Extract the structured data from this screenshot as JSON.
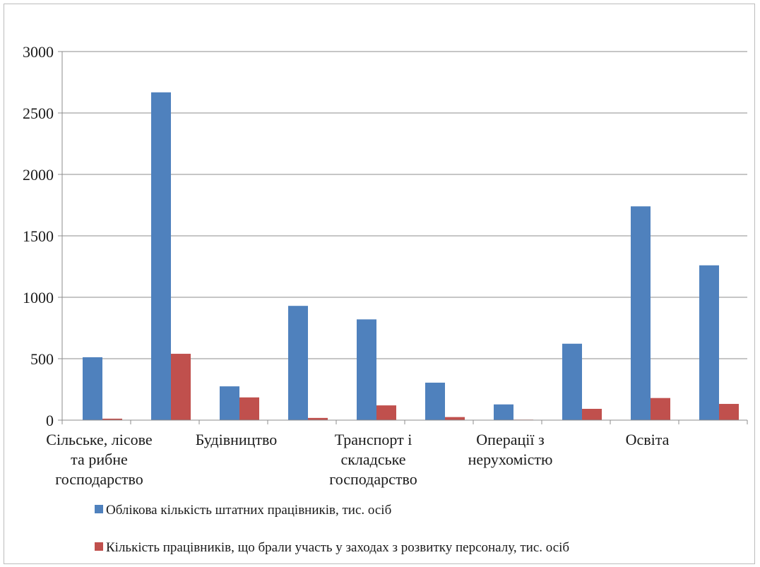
{
  "chart_data": {
    "type": "bar",
    "title": "",
    "xlabel": "",
    "ylabel": "",
    "ylim": [
      0,
      3000
    ],
    "yticks": [
      0,
      500,
      1000,
      1500,
      2000,
      2500,
      3000
    ],
    "grid": true,
    "legend_position": "bottom",
    "categories": [
      "Сільське, лісове та рибне господарство",
      "",
      "Будівництво",
      "",
      "Транспорт і складське господарство",
      "",
      "Операції з нерухомістю",
      "",
      "Освіта",
      ""
    ],
    "category_label_lines": [
      [
        "Сільське, лісове",
        "та рибне",
        "господарство"
      ],
      [],
      [
        "Будівництво"
      ],
      [],
      [
        "Транспорт і",
        "складське",
        "господарство"
      ],
      [],
      [
        "Операції з",
        "нерухомістю"
      ],
      [],
      [
        "Освіта"
      ],
      []
    ],
    "series": [
      {
        "name": "Облікова кількість штатних працівників, тис. осіб",
        "color": "#4f81bd",
        "values": [
          512,
          2668,
          275,
          930,
          820,
          305,
          128,
          622,
          1740,
          1260
        ]
      },
      {
        "name": "Кількість працівників, що брали участь у заходах з розвитку персоналу, тис. осіб",
        "color": "#c0504d",
        "values": [
          12,
          540,
          185,
          18,
          120,
          25,
          4,
          92,
          180,
          132
        ]
      }
    ]
  }
}
